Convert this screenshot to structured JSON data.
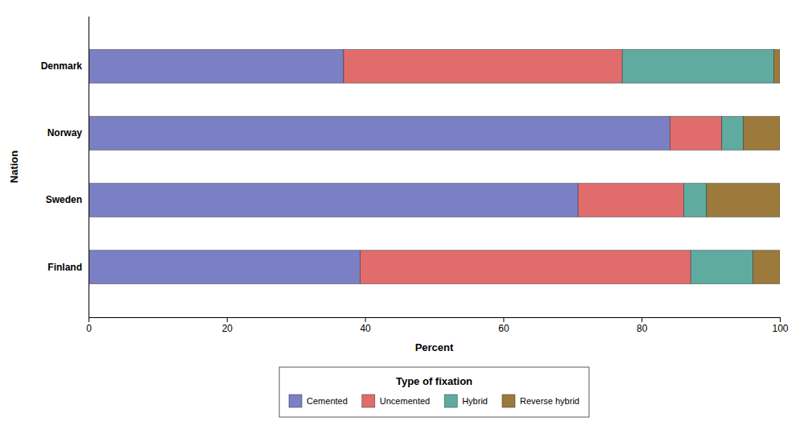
{
  "chart_data": {
    "type": "bar",
    "orientation": "horizontal",
    "stacked": true,
    "categories": [
      "Finland",
      "Sweden",
      "Norway",
      "Denmark"
    ],
    "series": [
      {
        "name": "Cemented",
        "color": "#7b7fc4",
        "values": [
          39.3,
          70.8,
          84.1,
          36.9
        ]
      },
      {
        "name": "Uncemented",
        "color": "#e06c6c",
        "values": [
          47.8,
          15.3,
          7.5,
          40.3
        ]
      },
      {
        "name": "Hybrid",
        "color": "#5faba0",
        "values": [
          9.0,
          3.3,
          3.1,
          21.9
        ]
      },
      {
        "name": "Reverse hybrid",
        "color": "#9c7a3c",
        "values": [
          3.9,
          10.6,
          5.3,
          0.9
        ]
      }
    ],
    "xlabel": "Percent",
    "ylabel": "Nation",
    "xlim": [
      0,
      100
    ],
    "xticks": [
      0,
      20,
      40,
      60,
      80,
      100
    ],
    "legend_title": "Type of fixation",
    "legend": "bottom",
    "grid": false
  }
}
